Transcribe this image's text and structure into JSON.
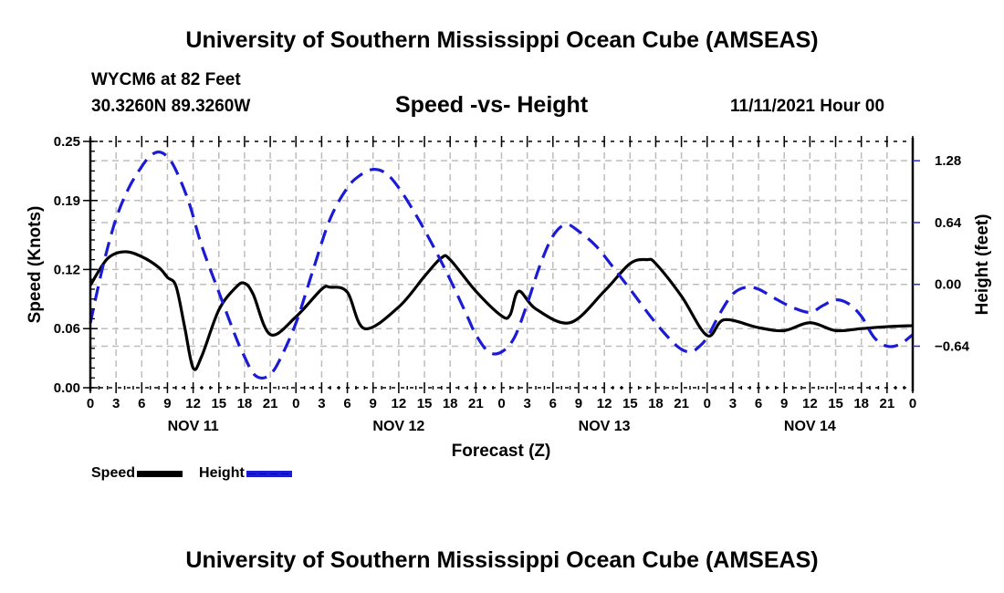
{
  "header": {
    "main_title": "University of Southern Mississippi Ocean Cube (AMSEAS)",
    "station": "WYCM6 at 82 Feet",
    "coords": "30.3260N  89.3260W",
    "subtitle": "Speed -vs- Height",
    "run_time": "11/11/2021 Hour 00"
  },
  "footer": {
    "title": "University of Southern Mississippi Ocean Cube (AMSEAS)"
  },
  "legend": {
    "items": [
      {
        "label": "Speed",
        "color": "#000000",
        "style": "solid"
      },
      {
        "label": "Height",
        "color": "#1b1bd6",
        "style": "dashed"
      }
    ]
  },
  "chart_data": {
    "type": "line",
    "title": "Speed -vs- Height",
    "xlabel": "Forecast (Z)",
    "ylabel": "Speed (Knots)",
    "y2label": "Height (feet)",
    "xlim": [
      0,
      96
    ],
    "x_tick_labels": [
      "0",
      "3",
      "6",
      "9",
      "12",
      "15",
      "18",
      "21",
      "0",
      "3",
      "6",
      "9",
      "12",
      "15",
      "18",
      "21",
      "0",
      "3",
      "6",
      "9",
      "12",
      "15",
      "18",
      "21",
      "0",
      "3",
      "6",
      "9",
      "12",
      "15",
      "18",
      "21",
      "0"
    ],
    "day_labels": [
      {
        "label": "NOV 11",
        "center_hour": 12
      },
      {
        "label": "NOV 12",
        "center_hour": 36
      },
      {
        "label": "NOV 13",
        "center_hour": 60
      },
      {
        "label": "NOV 14",
        "center_hour": 84
      }
    ],
    "ylim": [
      0,
      0.25
    ],
    "y_ticks": [
      0.0,
      0.06,
      0.12,
      0.19,
      0.25
    ],
    "y_tick_labels": [
      "0.00",
      "0.06",
      "0.12",
      "0.19",
      "0.25"
    ],
    "y2lim": [
      -1.07,
      1.48
    ],
    "y2_ticks": [
      -0.64,
      0.0,
      0.64,
      1.28
    ],
    "y2_tick_labels": [
      "−0.64",
      "0.00",
      "0.64",
      "1.28"
    ],
    "grid": true,
    "legend_position": "bottom-left",
    "series": [
      {
        "name": "Speed",
        "axis": "left",
        "color": "#000000",
        "style": "solid",
        "x": [
          0,
          2,
          4,
          6,
          8,
          9,
          10,
          11,
          12,
          13,
          15,
          17,
          18,
          19,
          21,
          24,
          27,
          28,
          30,
          32,
          36,
          39,
          41,
          42,
          45,
          48,
          49,
          50,
          52,
          56,
          60,
          63,
          65,
          66,
          69,
          72,
          74,
          78,
          81,
          84,
          87,
          90,
          93,
          96
        ],
        "values": [
          0.104,
          0.131,
          0.138,
          0.133,
          0.122,
          0.112,
          0.103,
          0.062,
          0.02,
          0.032,
          0.079,
          0.102,
          0.106,
          0.095,
          0.054,
          0.072,
          0.1,
          0.102,
          0.097,
          0.06,
          0.082,
          0.113,
          0.132,
          0.13,
          0.098,
          0.073,
          0.074,
          0.098,
          0.08,
          0.066,
          0.098,
          0.126,
          0.13,
          0.126,
          0.093,
          0.053,
          0.069,
          0.061,
          0.058,
          0.066,
          0.058,
          0.06,
          0.062,
          0.063
        ]
      },
      {
        "name": "Height",
        "axis": "right",
        "color": "#1b1bd6",
        "style": "dashed",
        "x": [
          0,
          1.5,
          3,
          4.5,
          6,
          7,
          8,
          9,
          10,
          11.5,
          13,
          15,
          17,
          18,
          19,
          20,
          21,
          22,
          24,
          26,
          28,
          30,
          31.5,
          33,
          34.5,
          36,
          38,
          40,
          42,
          44,
          45,
          46.5,
          48,
          49.5,
          51,
          52.5,
          54,
          55.5,
          57,
          59,
          61,
          63,
          66,
          68.5,
          70,
          71,
          72,
          73.5,
          75,
          76.5,
          78,
          80,
          82,
          84,
          85.5,
          87,
          88.5,
          90,
          91.5,
          93,
          94.5,
          96
        ],
        "values": [
          -0.4,
          0.2,
          0.68,
          1.0,
          1.22,
          1.33,
          1.37,
          1.32,
          1.18,
          0.85,
          0.4,
          -0.08,
          -0.55,
          -0.75,
          -0.92,
          -0.97,
          -0.93,
          -0.8,
          -0.4,
          0.15,
          0.68,
          1.0,
          1.13,
          1.19,
          1.15,
          1.0,
          0.72,
          0.4,
          0.05,
          -0.33,
          -0.52,
          -0.7,
          -0.7,
          -0.55,
          -0.2,
          0.2,
          0.5,
          0.62,
          0.55,
          0.4,
          0.18,
          -0.05,
          -0.4,
          -0.64,
          -0.7,
          -0.65,
          -0.55,
          -0.3,
          -0.1,
          -0.03,
          -0.05,
          -0.15,
          -0.24,
          -0.29,
          -0.22,
          -0.16,
          -0.2,
          -0.33,
          -0.55,
          -0.64,
          -0.62,
          -0.52
        ]
      }
    ]
  }
}
